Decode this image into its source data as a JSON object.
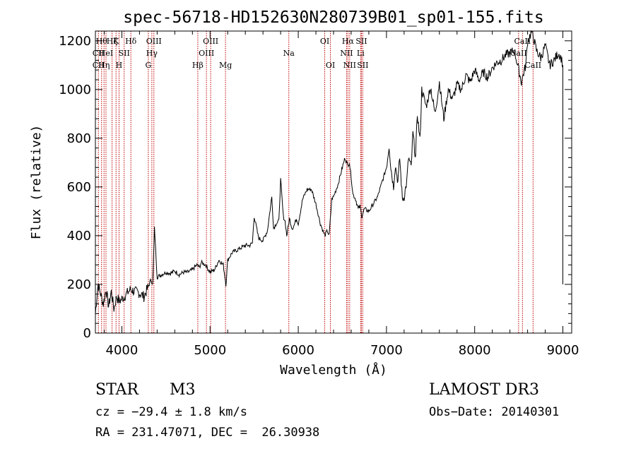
{
  "chart_data": {
    "type": "line",
    "title": "spec-56718-HD152630N280739B01_sp01-155.fits",
    "xlabel": "Wavelength (Å)",
    "ylabel": "Flux (relative)",
    "xlim": [
      3700,
      9100
    ],
    "ylim": [
      0,
      1240
    ],
    "xticks": [
      4000,
      5000,
      6000,
      7000,
      8000,
      9000
    ],
    "yticks": [
      0,
      200,
      400,
      600,
      800,
      1000,
      1200
    ],
    "x_tick_labels": [
      "4000",
      "5000",
      "6000",
      "7000",
      "8000",
      "9000"
    ],
    "y_tick_labels": [
      "0",
      "200",
      "400",
      "600",
      "800",
      "1000",
      "1200"
    ],
    "series": [
      {
        "name": "flux",
        "x": [
          3700,
          3730,
          3760,
          3790,
          3820,
          3850,
          3880,
          3910,
          3940,
          3970,
          4000,
          4050,
          4100,
          4150,
          4200,
          4250,
          4300,
          4330,
          4350,
          4370,
          4400,
          4450,
          4500,
          4550,
          4600,
          4650,
          4700,
          4750,
          4800,
          4850,
          4880,
          4900,
          4950,
          5000,
          5050,
          5100,
          5150,
          5180,
          5200,
          5250,
          5300,
          5350,
          5400,
          5450,
          5480,
          5500,
          5550,
          5600,
          5650,
          5700,
          5720,
          5750,
          5780,
          5800,
          5830,
          5850,
          5870,
          5900,
          5930,
          5950,
          5980,
          6000,
          6050,
          6100,
          6150,
          6200,
          6250,
          6300,
          6330,
          6350,
          6380,
          6400,
          6450,
          6500,
          6530,
          6560,
          6580,
          6600,
          6620,
          6650,
          6680,
          6700,
          6720,
          6750,
          6800,
          6850,
          6900,
          6950,
          7000,
          7030,
          7050,
          7080,
          7100,
          7130,
          7150,
          7180,
          7200,
          7230,
          7250,
          7280,
          7300,
          7330,
          7350,
          7380,
          7400,
          7450,
          7500,
          7550,
          7600,
          7650,
          7700,
          7750,
          7800,
          7850,
          7900,
          7950,
          8000,
          8050,
          8100,
          8150,
          8200,
          8250,
          8300,
          8350,
          8400,
          8450,
          8500,
          8530,
          8550,
          8580,
          8600,
          8650,
          8700,
          8750,
          8800,
          8850,
          8900,
          8950,
          8980,
          9000
        ],
        "y": [
          80,
          200,
          160,
          120,
          180,
          110,
          170,
          100,
          150,
          130,
          140,
          160,
          180,
          170,
          165,
          150,
          190,
          220,
          200,
          430,
          230,
          240,
          250,
          245,
          255,
          240,
          250,
          250,
          260,
          280,
          270,
          290,
          280,
          250,
          260,
          300,
          280,
          200,
          300,
          330,
          340,
          350,
          360,
          360,
          370,
          480,
          390,
          380,
          420,
          560,
          430,
          450,
          460,
          630,
          480,
          460,
          400,
          470,
          430,
          440,
          470,
          450,
          550,
          590,
          590,
          530,
          450,
          400,
          420,
          400,
          550,
          560,
          610,
          680,
          720,
          690,
          700,
          640,
          570,
          550,
          510,
          520,
          480,
          510,
          500,
          530,
          560,
          620,
          680,
          770,
          680,
          600,
          690,
          620,
          720,
          550,
          560,
          620,
          720,
          680,
          820,
          720,
          900,
          790,
          1000,
          930,
          1010,
          900,
          1030,
          880,
          1000,
          960,
          1020,
          1000,
          1060,
          1030,
          1080,
          1040,
          1070,
          1050,
          1090,
          1110,
          1120,
          1140,
          1150,
          1160,
          1080,
          1030,
          1060,
          1100,
          1200,
          1240,
          1160,
          1130,
          1180,
          1100,
          1120,
          1150,
          1130,
          1100
        ]
      }
    ],
    "lines": [
      {
        "x": 3734,
        "labels": [
          "CII",
          "CII"
        ],
        "rows": [
          1,
          2
        ]
      },
      {
        "x": 3770,
        "labels": [
          "Hθ"
        ],
        "rows": [
          0
        ]
      },
      {
        "x": 3798,
        "labels": [
          "Hη"
        ],
        "rows": [
          2
        ]
      },
      {
        "x": 3820,
        "labels": [
          "HeI"
        ],
        "rows": [
          1
        ]
      },
      {
        "x": 3889,
        "labels": [
          "Hζ"
        ],
        "rows": [
          0
        ]
      },
      {
        "x": 3934,
        "labels": [
          "K"
        ],
        "rows": [
          0
        ]
      },
      {
        "x": 3968,
        "labels": [
          "H"
        ],
        "rows": [
          2
        ]
      },
      {
        "x": 4026,
        "labels": [
          "SII"
        ],
        "rows": [
          1
        ]
      },
      {
        "x": 4102,
        "labels": [
          "Hδ"
        ],
        "rows": [
          0
        ]
      },
      {
        "x": 4300,
        "labels": [
          "G"
        ],
        "rows": [
          2
        ]
      },
      {
        "x": 4340,
        "labels": [
          "Hγ"
        ],
        "rows": [
          1
        ]
      },
      {
        "x": 4363,
        "labels": [
          "OIII"
        ],
        "rows": [
          0
        ]
      },
      {
        "x": 4861,
        "labels": [
          "Hβ"
        ],
        "rows": [
          2
        ]
      },
      {
        "x": 4959,
        "labels": [
          "OIII"
        ],
        "rows": [
          1
        ]
      },
      {
        "x": 5007,
        "labels": [
          "OIII"
        ],
        "rows": [
          0
        ]
      },
      {
        "x": 5175,
        "labels": [
          "Mg"
        ],
        "rows": [
          2
        ]
      },
      {
        "x": 5893,
        "labels": [
          "Na"
        ],
        "rows": [
          1
        ]
      },
      {
        "x": 6300,
        "labels": [
          "OI"
        ],
        "rows": [
          0
        ]
      },
      {
        "x": 6364,
        "labels": [
          "OI"
        ],
        "rows": [
          2
        ]
      },
      {
        "x": 6548,
        "labels": [
          "NII"
        ],
        "rows": [
          1
        ]
      },
      {
        "x": 6563,
        "labels": [
          "Hα"
        ],
        "rows": [
          0
        ]
      },
      {
        "x": 6583,
        "labels": [
          "NII"
        ],
        "rows": [
          2
        ]
      },
      {
        "x": 6707,
        "labels": [
          "Li"
        ],
        "rows": [
          1
        ]
      },
      {
        "x": 6716,
        "labels": [
          "SII"
        ],
        "rows": [
          0
        ]
      },
      {
        "x": 6731,
        "labels": [
          "SII"
        ],
        "rows": [
          2
        ]
      },
      {
        "x": 8498,
        "labels": [
          "CaII"
        ],
        "rows": [
          1
        ]
      },
      {
        "x": 8542,
        "labels": [
          "CaII"
        ],
        "rows": [
          0
        ]
      },
      {
        "x": 8662,
        "labels": [
          "CaII"
        ],
        "rows": [
          2
        ]
      }
    ]
  },
  "info": {
    "object_class": "STAR",
    "subclass": "M3",
    "survey": "LAMOST DR3",
    "cz": "cz = −29.4 ± 1.8 km/s",
    "obs_date": "Obs−Date: 20140301",
    "radec": "RA = 231.47071, DEC =  26.30938"
  },
  "colors": {
    "line_marker": "#c00000",
    "axes": "#000000",
    "spectrum": "#000000"
  }
}
